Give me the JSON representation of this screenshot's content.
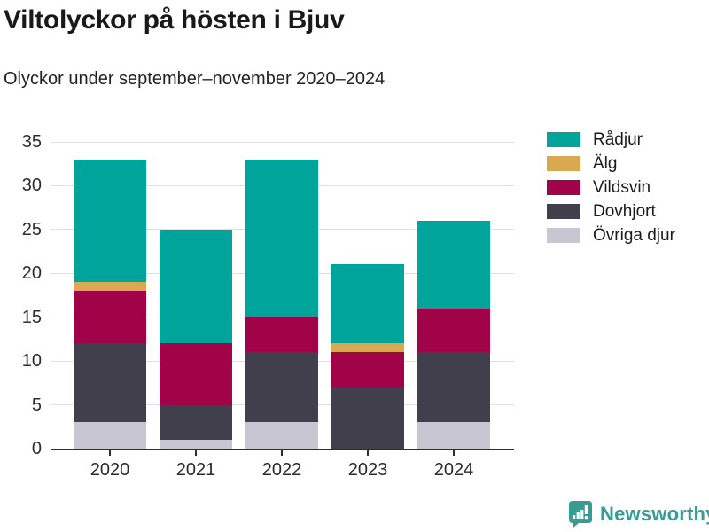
{
  "header": {
    "title": "Viltolyckor på hösten i Bjuv",
    "subtitle": "Olyckor under september–november 2020–2024"
  },
  "chart_data": {
    "type": "bar",
    "stacked": true,
    "title": "Viltolyckor på hösten i Bjuv",
    "subtitle": "Olyckor under september–november 2020–2024",
    "categories": [
      "2020",
      "2021",
      "2022",
      "2023",
      "2024"
    ],
    "series": [
      {
        "name": "Övriga djur",
        "color": "#c8c6d2",
        "values": [
          3,
          1,
          3,
          0,
          3
        ]
      },
      {
        "name": "Dovhjort",
        "color": "#423f4d",
        "values": [
          9,
          4,
          8,
          7,
          8
        ]
      },
      {
        "name": "Vildsvin",
        "color": "#a00347",
        "values": [
          6,
          7,
          4,
          4,
          5
        ]
      },
      {
        "name": "Älg",
        "color": "#daa851",
        "values": [
          1,
          0,
          0,
          1,
          0
        ]
      },
      {
        "name": "Rådjur",
        "color": "#00a49b",
        "values": [
          14,
          13,
          18,
          9,
          10
        ]
      }
    ],
    "totals": [
      33,
      25,
      33,
      21,
      26
    ],
    "legend_order": [
      "Rådjur",
      "Älg",
      "Vildsvin",
      "Dovhjort",
      "Övriga djur"
    ],
    "legend_position": "right",
    "xlabel": "",
    "ylabel": "",
    "ylim": [
      0,
      35
    ],
    "yticks": [
      0,
      5,
      10,
      15,
      20,
      25,
      30,
      35
    ],
    "grid": true,
    "gridline_color": "#e0e0e0",
    "axis_color": "#2e2e2e"
  },
  "footer": {
    "brand": "Newsworthy",
    "brand_color": "#389c94",
    "logo_icon": "speech-bubble-bar-chart-icon"
  }
}
